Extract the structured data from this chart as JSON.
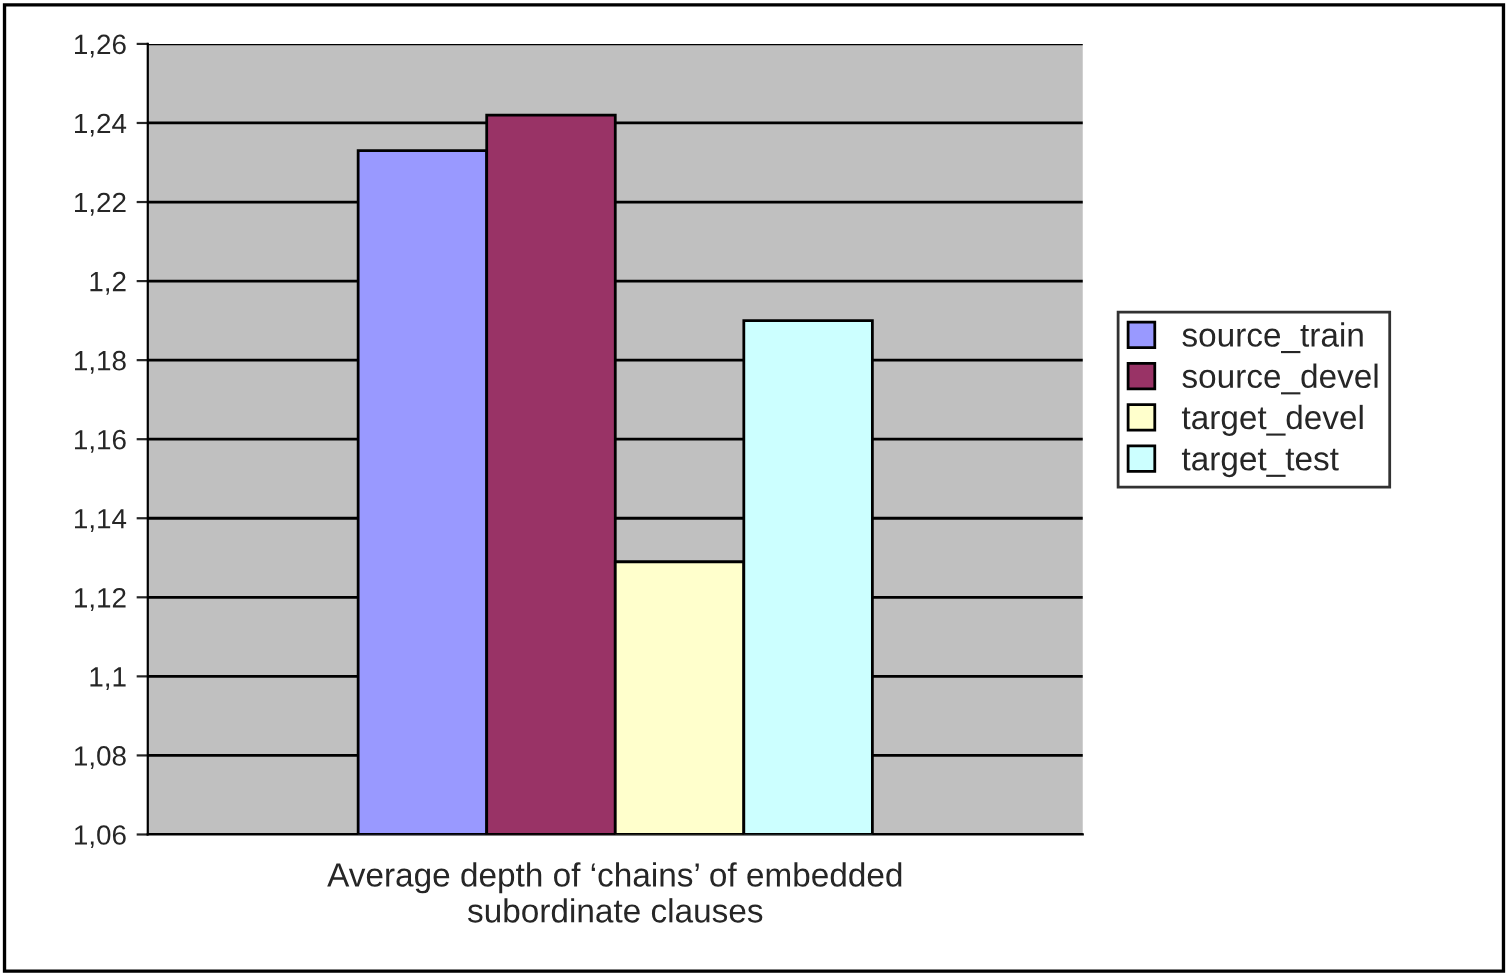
{
  "chart_data": {
    "type": "bar",
    "categories": [
      "Average depth of ‘chains’ of embedded subordinate clauses"
    ],
    "series": [
      {
        "name": "source_train",
        "color": "#9999ff",
        "values": [
          1.233
        ]
      },
      {
        "name": "source_devel",
        "color": "#993366",
        "values": [
          1.242
        ]
      },
      {
        "name": "target_devel",
        "color": "#ffffcc",
        "values": [
          1.129
        ]
      },
      {
        "name": "target_test",
        "color": "#ccffff",
        "values": [
          1.19
        ]
      }
    ],
    "ylim": [
      1.06,
      1.26
    ],
    "yticks": [
      {
        "value": 1.06,
        "label": "1,06"
      },
      {
        "value": 1.08,
        "label": "1,08"
      },
      {
        "value": 1.1,
        "label": "1,1"
      },
      {
        "value": 1.12,
        "label": "1,12"
      },
      {
        "value": 1.14,
        "label": "1,14"
      },
      {
        "value": 1.16,
        "label": "1,16"
      },
      {
        "value": 1.18,
        "label": "1,18"
      },
      {
        "value": 1.2,
        "label": "1,2"
      },
      {
        "value": 1.22,
        "label": "1,22"
      },
      {
        "value": 1.24,
        "label": "1,24"
      },
      {
        "value": 1.26,
        "label": "1,26"
      }
    ],
    "grid": "y",
    "legend": "right"
  }
}
